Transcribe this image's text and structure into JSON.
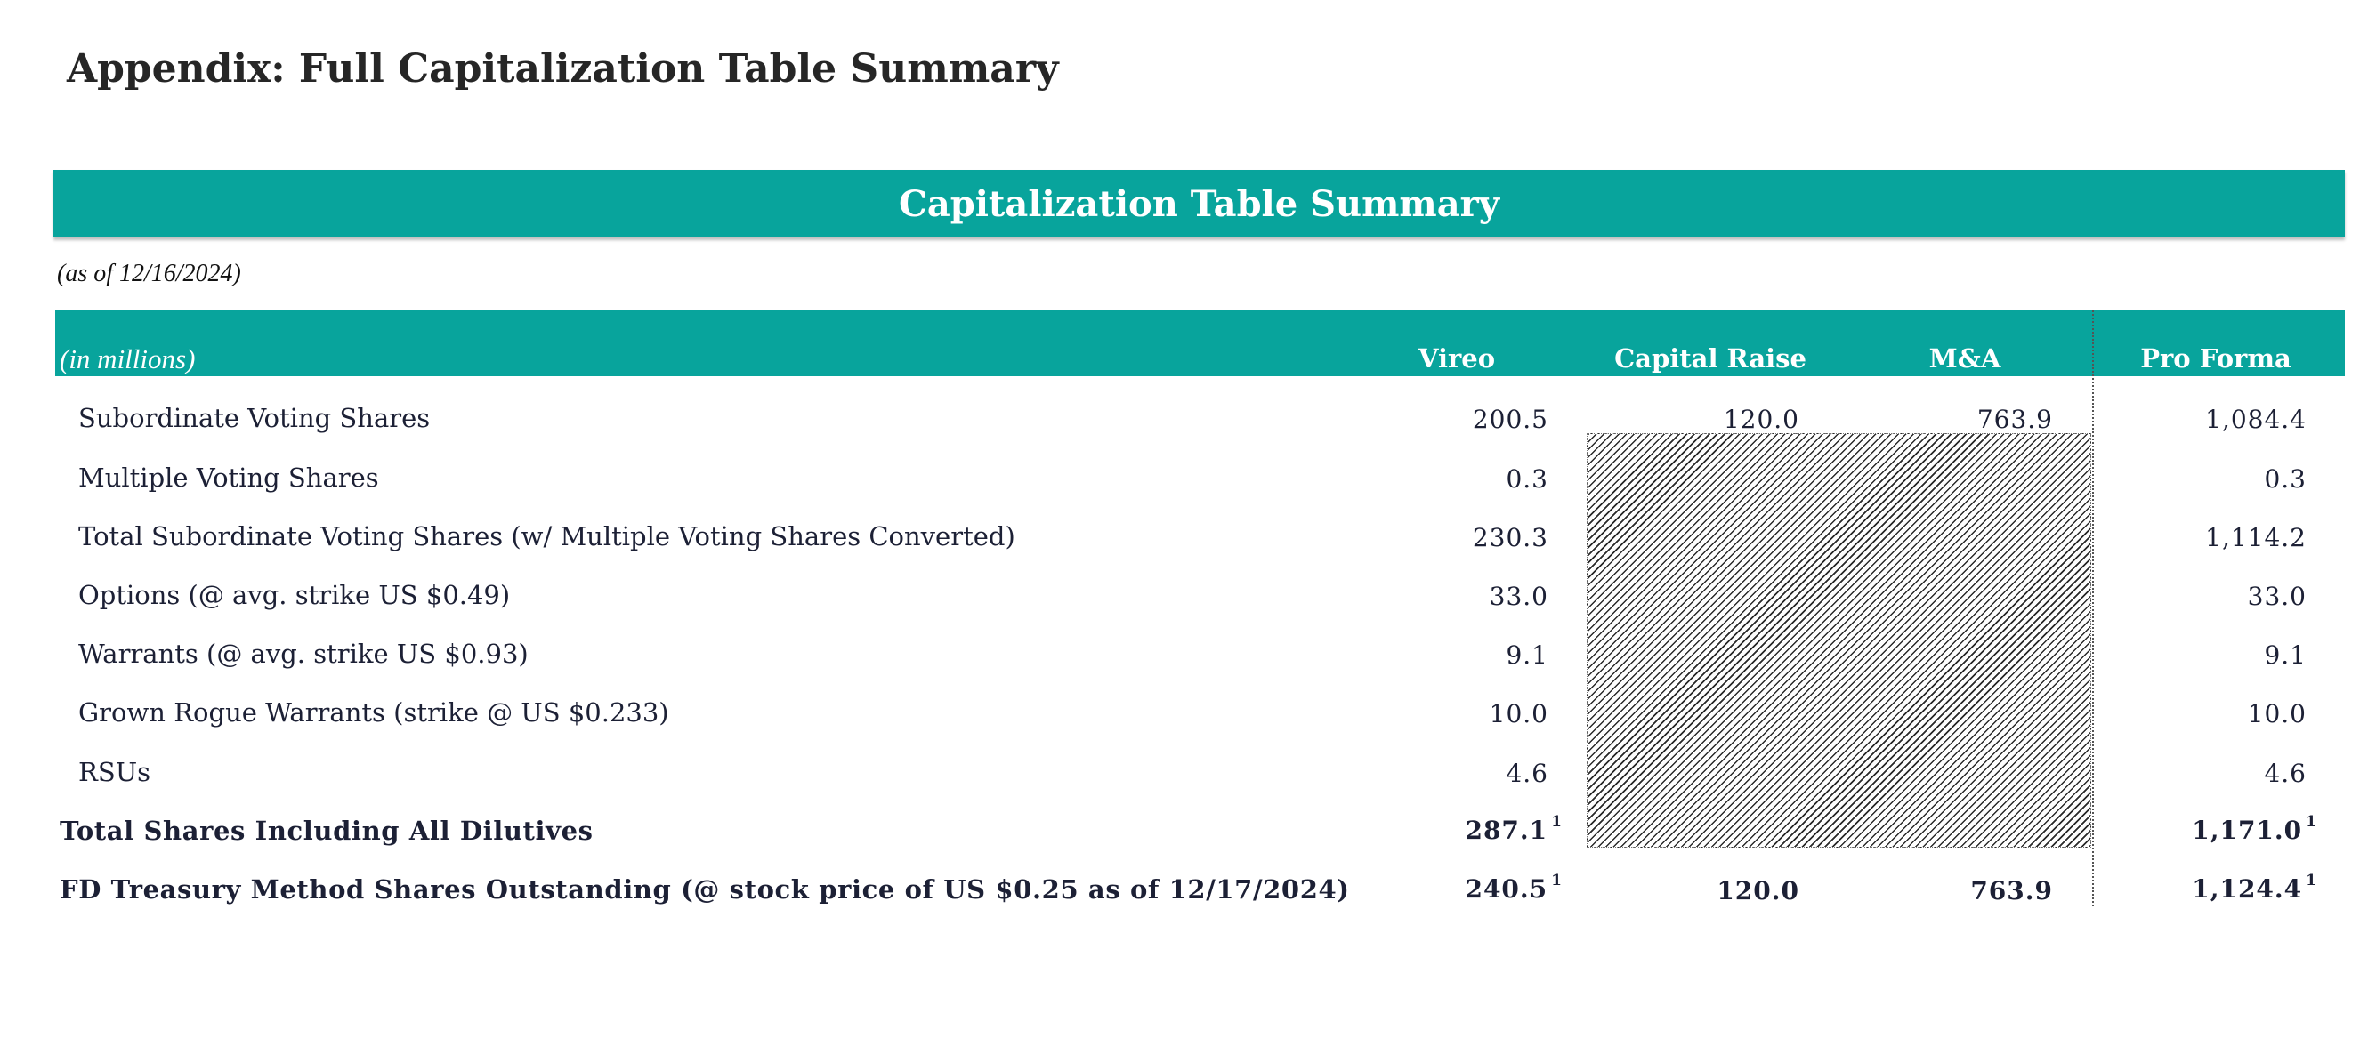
{
  "page_title": "Appendix: Full Capitalization Table Summary",
  "banner_title": "Capitalization Table Summary",
  "as_of": "(as of 12/16/2024)",
  "header": {
    "units": "(in millions)",
    "columns": [
      "Vireo",
      "Capital Raise",
      "M&A",
      "Pro Forma"
    ]
  },
  "rows": [
    {
      "label": "Subordinate Voting Shares",
      "vireo": "200.5",
      "capital_raise": "120.0",
      "ma": "763.9",
      "pro_forma": "1,084.4"
    },
    {
      "label": "Multiple Voting Shares",
      "vireo": "0.3",
      "pro_forma": "0.3"
    },
    {
      "label": "Total Subordinate Voting Shares (w/ Multiple Voting Shares Converted)",
      "vireo": "230.3",
      "pro_forma": "1,114.2"
    },
    {
      "label": "Options (@ avg. strike US $0.49)",
      "vireo": "33.0",
      "pro_forma": "33.0"
    },
    {
      "label": "Warrants (@ avg. strike US $0.93)",
      "vireo": "9.1",
      "pro_forma": "9.1"
    },
    {
      "label": "Grown Rogue Warrants (strike @ US $0.233)",
      "vireo": "10.0",
      "pro_forma": "10.0"
    },
    {
      "label": "RSUs",
      "vireo": "4.6",
      "pro_forma": "4.6"
    }
  ],
  "totals": [
    {
      "label": "Total Shares Including All Dilutives",
      "vireo": "287.1",
      "vireo_note": "1",
      "pro_forma": "1,171.0",
      "pro_forma_note": "1"
    },
    {
      "label": "FD Treasury Method Shares Outstanding (@ stock price of US $0.25 as of 12/17/2024)",
      "vireo": "240.5",
      "vireo_note": "1",
      "capital_raise": "120.0",
      "ma": "763.9",
      "pro_forma": "1,124.4",
      "pro_forma_note": "1"
    }
  ]
}
